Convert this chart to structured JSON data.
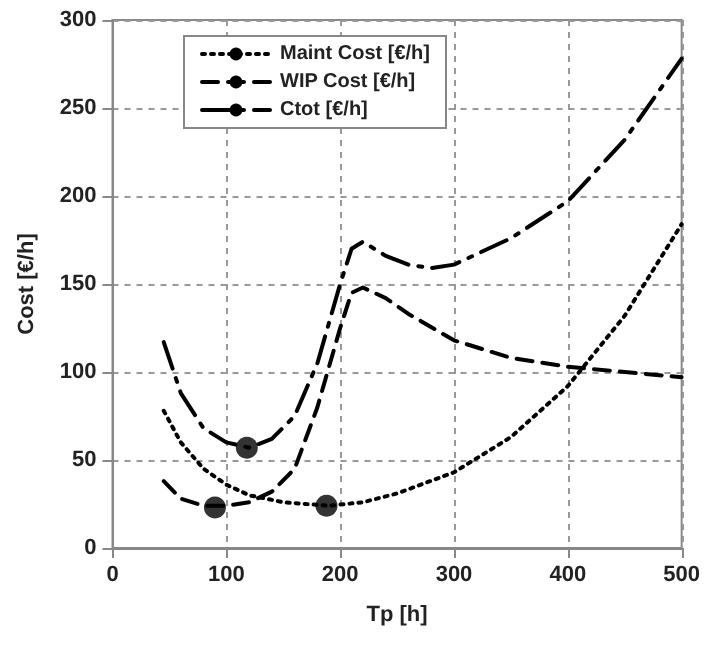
{
  "chart_data": {
    "type": "line",
    "xlabel": "Tp [h]",
    "ylabel": "Cost [€/h]",
    "xlim": [
      0,
      500
    ],
    "xticks": [
      0,
      100,
      200,
      300,
      400,
      500
    ],
    "ylim": [
      0,
      300
    ],
    "yticks": [
      0,
      50,
      100,
      150,
      200,
      250,
      300
    ],
    "grid": true,
    "legend": "top left",
    "marker": "none",
    "series": [
      {
        "name": "Maint Cost [€/h]",
        "color": "#000000",
        "line_style": "dotted",
        "x": [
          45,
          60,
          80,
          100,
          120,
          150,
          190,
          220,
          250,
          300,
          350,
          400,
          450,
          500
        ],
        "values": [
          78,
          60,
          45,
          36,
          30,
          26,
          24,
          26,
          31,
          43,
          63,
          92,
          132,
          184
        ]
      },
      {
        "name": "WIP Cost [€/h]",
        "color": "#000000",
        "line_style": "dashed",
        "x": [
          45,
          60,
          80,
          100,
          120,
          140,
          160,
          180,
          200,
          210,
          220,
          240,
          260,
          300,
          350,
          400,
          450,
          500
        ],
        "values": [
          38,
          28,
          24,
          24,
          26,
          32,
          45,
          80,
          125,
          145,
          148,
          142,
          133,
          118,
          108,
          103,
          100,
          97
        ]
      },
      {
        "name": "Ctot [€/h]",
        "color": "#000000",
        "line_style": "dashdot",
        "x": [
          45,
          60,
          80,
          100,
          120,
          140,
          160,
          180,
          200,
          210,
          220,
          240,
          260,
          280,
          300,
          350,
          400,
          450,
          500
        ],
        "values": [
          117,
          88,
          68,
          60,
          57,
          62,
          75,
          105,
          150,
          170,
          174,
          166,
          161,
          159,
          161,
          176,
          197,
          232,
          278
        ]
      },
      {
        "type": "scatter",
        "color": "#000000",
        "marker": "circle",
        "x": [
          90,
          118,
          188
        ],
        "values": [
          23,
          57,
          24
        ]
      }
    ]
  }
}
